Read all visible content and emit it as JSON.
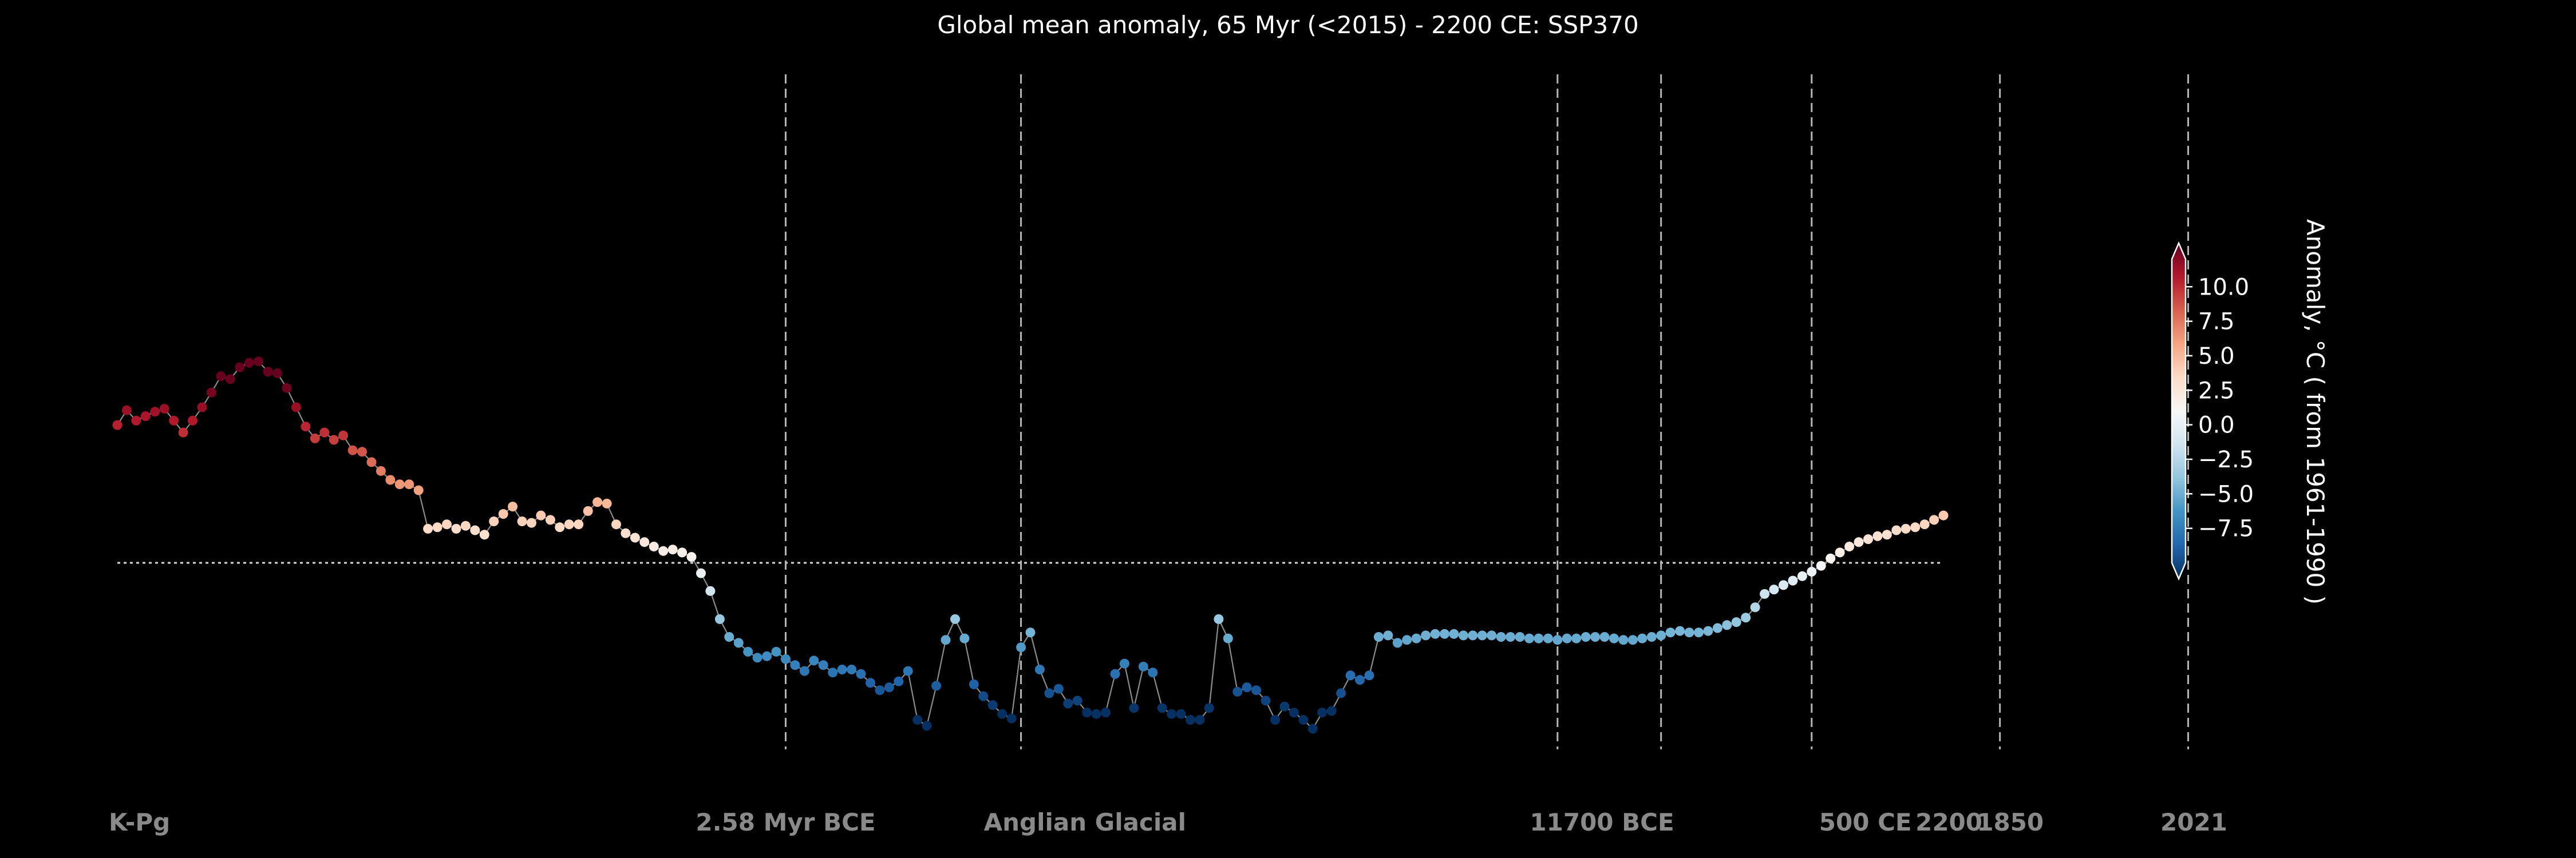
{
  "chart_data": {
    "type": "scatter",
    "title": "Global mean anomaly, 65 Myr (<2015) - 2200 CE: SSP370",
    "xlabel": "",
    "ylabel": "",
    "x_axis": "segmented time index",
    "period_labels": [
      "K-Pg",
      "2.58 Myr BCE",
      "Anglian Glacial",
      "11700 BCE",
      "500 CE",
      "1850",
      "2021",
      "2200"
    ],
    "period_boundaries_at_index": [
      71,
      96,
      153,
      164,
      180,
      200,
      220
    ],
    "reference_line": {
      "value": 0,
      "style": "dotted"
    },
    "colorbar": {
      "label": "Anomaly, °C ( from 1961-1990 )",
      "range": [
        -10,
        12
      ],
      "ticks": [
        "10.0",
        "7.5",
        "5.0",
        "2.5",
        "0.0",
        "−2.5",
        "−5.0",
        "−7.5"
      ],
      "tick_values": [
        10,
        7.5,
        5,
        2.5,
        0,
        -2.5,
        -5,
        -7.5
      ],
      "colormap": "RdBu_r"
    },
    "ylim": [
      -11,
      13
    ],
    "values": [
      9.3,
      10.3,
      9.6,
      9.9,
      10.2,
      10.4,
      9.6,
      8.8,
      9.6,
      10.5,
      11.5,
      12.6,
      12.4,
      13.2,
      13.5,
      13.6,
      12.9,
      12.8,
      11.8,
      10.5,
      9.2,
      8.4,
      8.8,
      8.3,
      8.6,
      7.6,
      7.5,
      6.8,
      6.2,
      5.6,
      5.3,
      5.3,
      4.9,
      2.3,
      2.4,
      2.6,
      2.3,
      2.5,
      2.2,
      1.9,
      2.8,
      3.3,
      3.8,
      2.8,
      2.7,
      3.2,
      2.9,
      2.4,
      2.6,
      2.6,
      3.5,
      4.1,
      4.0,
      2.6,
      2.0,
      1.7,
      1.4,
      1.1,
      0.8,
      0.9,
      0.7,
      0.4,
      -0.7,
      -1.9,
      -3.8,
      -5.0,
      -5.4,
      -6.0,
      -6.4,
      -6.3,
      -6.0,
      -6.5,
      -6.9,
      -7.3,
      -6.6,
      -6.9,
      -7.4,
      -7.2,
      -7.2,
      -7.5,
      -8.1,
      -8.6,
      -8.4,
      -8.0,
      -7.3,
      -10.6,
      -11.0,
      -8.3,
      -5.2,
      -3.8,
      -5.1,
      -8.2,
      -9.0,
      -9.6,
      -10.2,
      -10.5,
      -5.7,
      -4.7,
      -7.2,
      -8.8,
      -8.5,
      -9.5,
      -9.3,
      -10.1,
      -10.2,
      -10.1,
      -7.5,
      -6.8,
      -9.8,
      -7.0,
      -7.4,
      -9.8,
      -10.2,
      -10.2,
      -10.6,
      -10.6,
      -9.8,
      -3.8,
      -5.1,
      -8.7,
      -8.4,
      -8.6,
      -9.3,
      -10.6,
      -9.7,
      -10.1,
      -10.6,
      -11.2,
      -10.1,
      -10.0,
      -8.8,
      -7.6,
      -7.9,
      -7.6,
      -5.0,
      -4.9,
      -5.4,
      -5.2,
      -5.1,
      -4.9,
      -4.8,
      -4.8,
      -4.8,
      -4.9,
      -4.9,
      -4.9,
      -4.9,
      -5.0,
      -5.0,
      -5.0,
      -5.1,
      -5.1,
      -5.1,
      -5.2,
      -5.1,
      -5.1,
      -5.0,
      -5.0,
      -5.0,
      -5.1,
      -5.2,
      -5.2,
      -5.1,
      -5.0,
      -4.9,
      -4.7,
      -4.6,
      -4.7,
      -4.7,
      -4.6,
      -4.4,
      -4.2,
      -4.0,
      -3.7,
      -3.0,
      -2.1,
      -1.8,
      -1.5,
      -1.2,
      -0.9,
      -0.6,
      -0.2,
      0.3,
      0.7,
      1.1,
      1.4,
      1.6,
      1.8,
      1.9,
      2.2,
      2.3,
      2.4,
      2.6,
      2.9,
      3.2
    ]
  }
}
